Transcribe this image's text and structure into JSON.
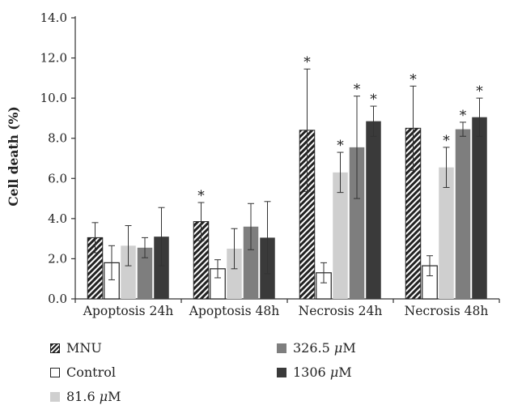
{
  "chart_data": {
    "type": "bar",
    "title": "",
    "xlabel": "",
    "ylabel": "Cell death (%)",
    "ylim": [
      0,
      14
    ],
    "yticks": [
      "0.0",
      "2.0",
      "4.0",
      "6.0",
      "8.0",
      "10.0",
      "12.0",
      "14.0"
    ],
    "categories": [
      "Apoptosis 24h",
      "Apoptosis 48h",
      "Necrosis 24h",
      "Necrosis 48h"
    ],
    "series": [
      {
        "name": "MNU",
        "values": [
          3.05,
          3.85,
          8.4,
          8.5
        ],
        "errors": [
          0.75,
          0.95,
          3.05,
          2.1
        ],
        "significant": [
          false,
          true,
          true,
          true
        ],
        "color": "#222222",
        "pattern": "hatched"
      },
      {
        "name": "Control",
        "values": [
          1.8,
          1.5,
          1.3,
          1.65
        ],
        "errors": [
          0.85,
          0.45,
          0.5,
          0.5
        ],
        "significant": [
          false,
          false,
          false,
          false
        ],
        "color": "#ffffff",
        "pattern": "outline"
      },
      {
        "name": "81.6 μM",
        "values": [
          2.65,
          2.5,
          6.3,
          6.55
        ],
        "errors": [
          1.0,
          1.0,
          1.0,
          1.0
        ],
        "significant": [
          false,
          false,
          true,
          true
        ],
        "color": "#cfcfcf",
        "pattern": "solid"
      },
      {
        "name": "326.5 μM",
        "values": [
          2.55,
          3.6,
          7.55,
          8.45
        ],
        "errors": [
          0.5,
          1.15,
          2.55,
          0.35
        ],
        "significant": [
          false,
          false,
          true,
          true
        ],
        "color": "#7e7e7e",
        "pattern": "solid"
      },
      {
        "name": "1306 μM",
        "values": [
          3.1,
          3.05,
          8.85,
          9.05
        ],
        "errors": [
          1.45,
          1.8,
          0.75,
          0.95
        ],
        "significant": [
          false,
          false,
          true,
          true
        ],
        "color": "#3a3a3a",
        "pattern": "solid"
      }
    ],
    "significance_marker": "*",
    "grid": false,
    "legend_position": "bottom"
  },
  "legend": {
    "mnu": "MNU",
    "control": "Control",
    "c81_value": "81.6",
    "c326_value": "326.5",
    "c1306_value": "1306",
    "unit_mu": "μ",
    "unit_m": "M"
  }
}
